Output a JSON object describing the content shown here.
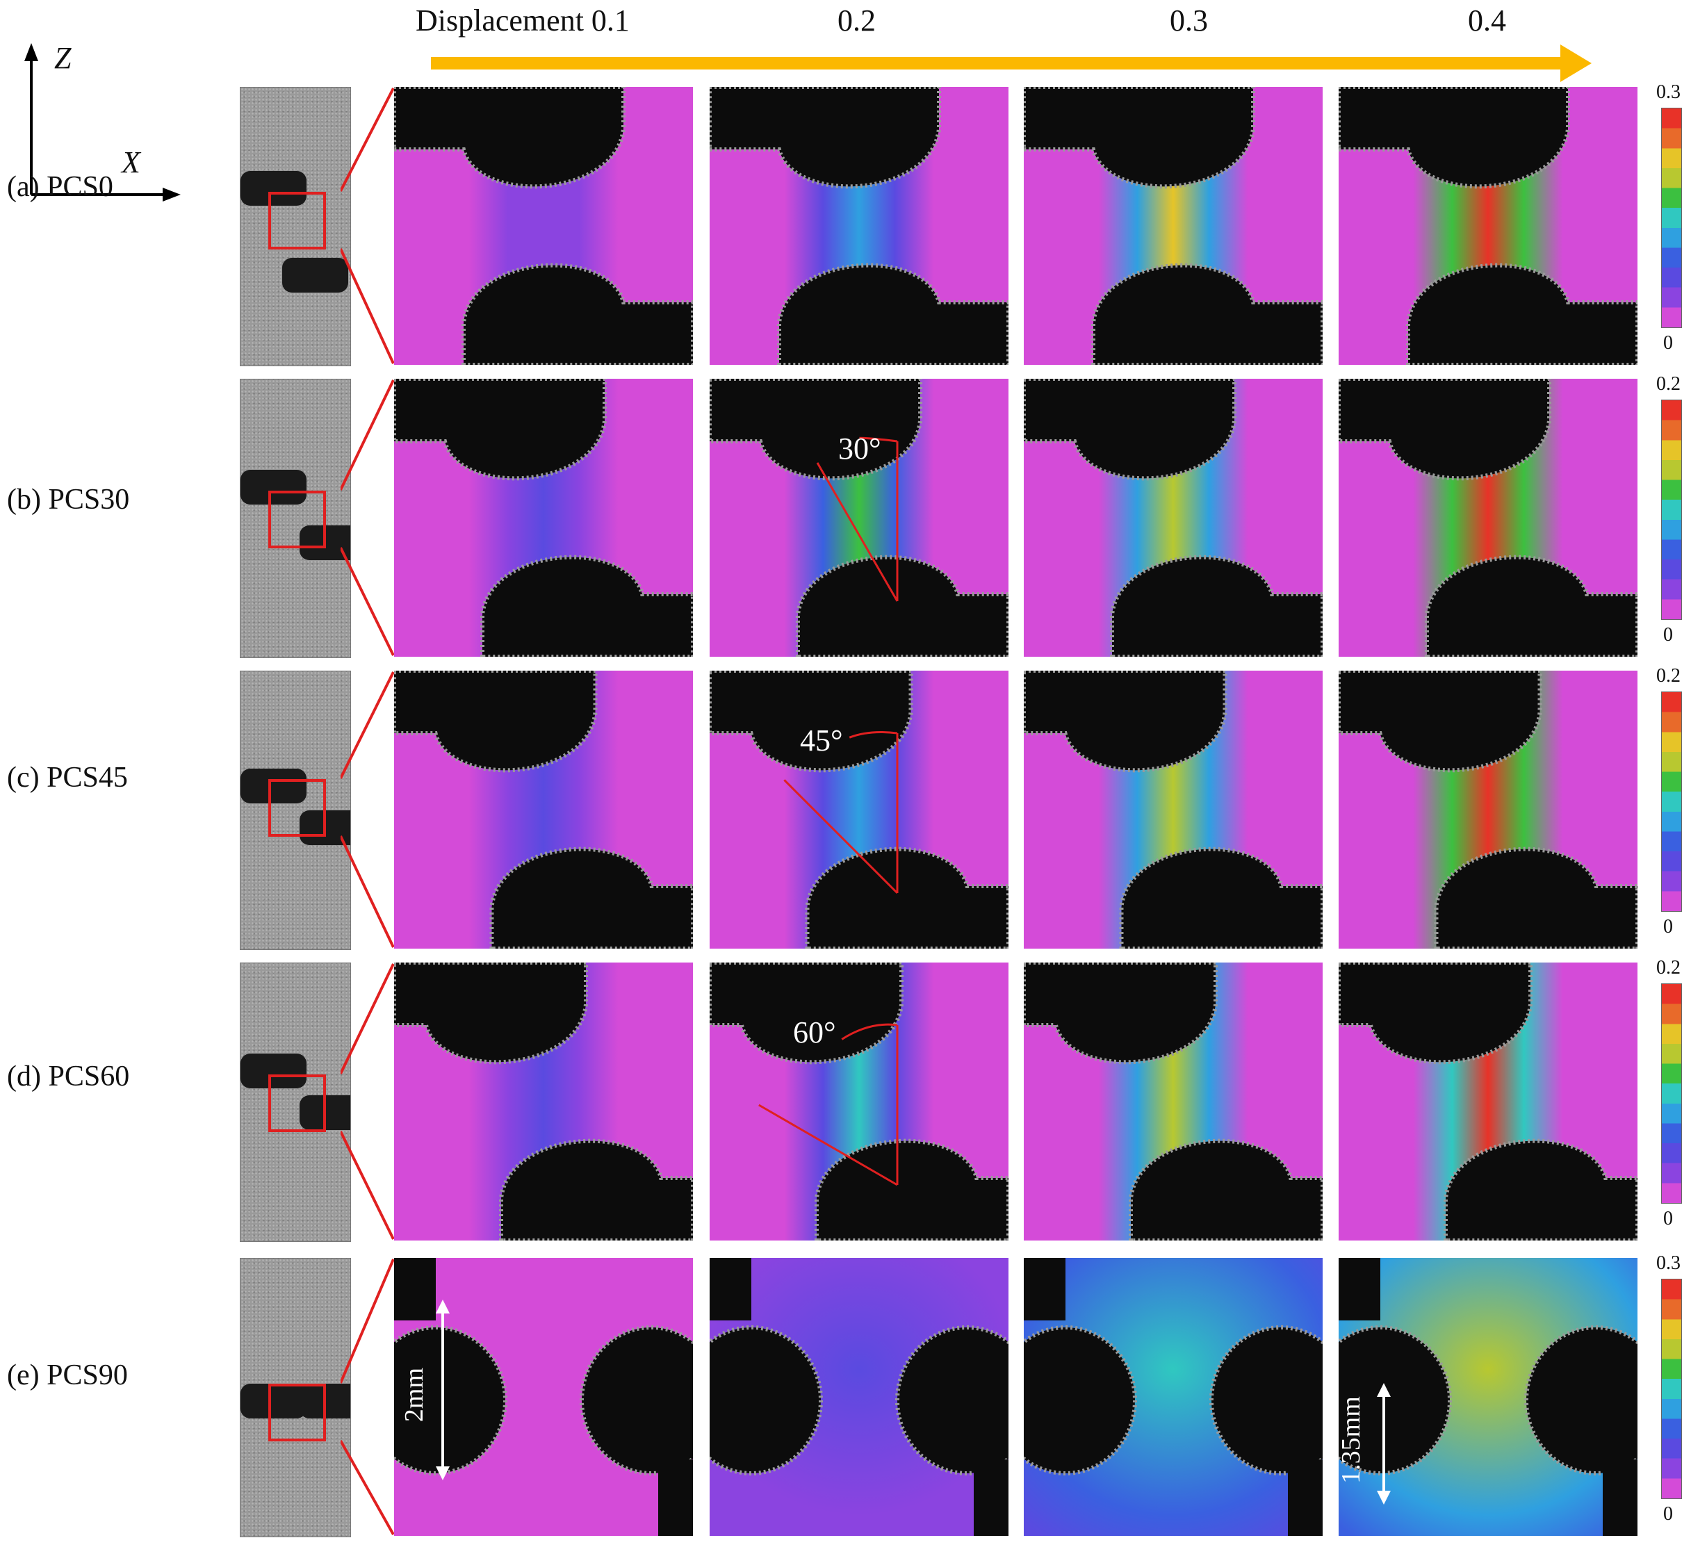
{
  "axes": {
    "z_label": "Z",
    "x_label": "X"
  },
  "displacement": {
    "label_prefix": "Displacement",
    "steps": [
      "0.1",
      "0.2",
      "0.3",
      "0.4"
    ]
  },
  "rows": [
    {
      "label": "(a) PCS0",
      "cb_max": "0.3",
      "cb_min": "0"
    },
    {
      "label": "(b) PCS30",
      "cb_max": "0.2",
      "cb_min": "0"
    },
    {
      "label": "(c) PCS45",
      "cb_max": "0.2",
      "cb_min": "0"
    },
    {
      "label": "(d) PCS60",
      "cb_max": "0.2",
      "cb_min": "0"
    },
    {
      "label": "(e) PCS90",
      "cb_max": "0.3",
      "cb_min": "0"
    }
  ],
  "annotations": {
    "angle_30": "30°",
    "angle_45": "45°",
    "angle_60": "60°",
    "dim_2mm": "2mm",
    "dim_135mm": "1.35mm"
  },
  "strain_levels": [
    [
      0.03,
      0.12,
      0.23,
      0.3
    ],
    [
      0.03,
      0.12,
      0.15,
      0.2
    ],
    [
      0.03,
      0.08,
      0.13,
      0.2
    ],
    [
      0.03,
      0.09,
      0.14,
      0.19
    ],
    [
      0.0,
      0.06,
      0.15,
      0.22
    ]
  ],
  "colors": {
    "arrow": "#fbb800",
    "zoom_lines": "#e02020",
    "colormap": [
      "#d44bd8",
      "#8b44e0",
      "#5a4ae0",
      "#3a60e0",
      "#2fa0e0",
      "#30c8c0",
      "#3cc040",
      "#b8c830",
      "#e6c428",
      "#e86a2a",
      "#e83228"
    ]
  }
}
